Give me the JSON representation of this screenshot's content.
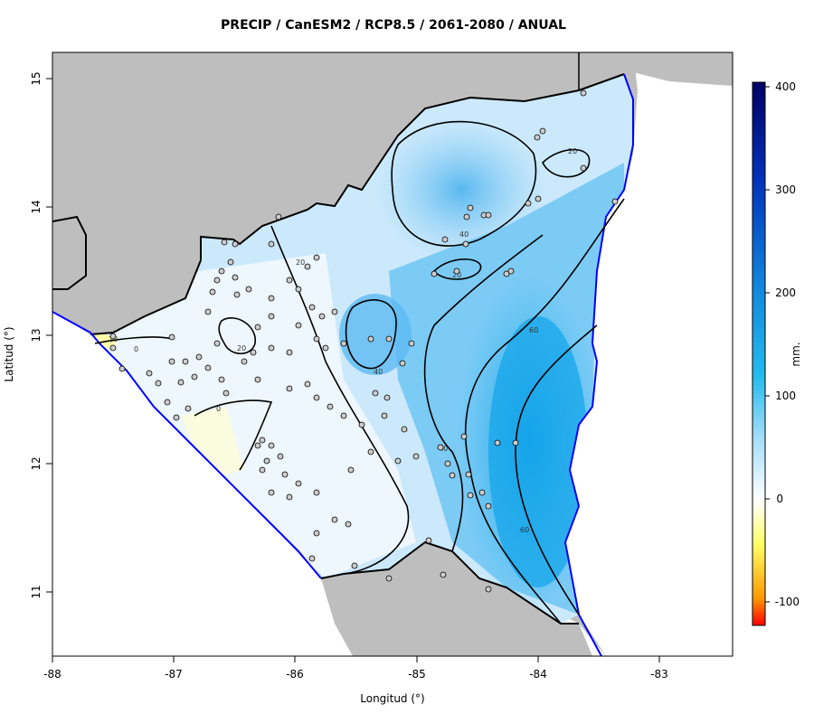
{
  "title": "PRECIP / CanESM2 / RCP8.5 / 2061-2080 / ANUAL",
  "xlabel": "Longitud (°)",
  "ylabel": "Latitud (°)",
  "colorbar": {
    "unit": "mm.",
    "ticks": [
      "400",
      "300",
      "200",
      "100",
      "0",
      "-100"
    ],
    "range": [
      -120,
      400
    ],
    "colors": [
      "#ff0000",
      "#ff9900",
      "#ffff66",
      "#ffffff",
      "#9fdcf8",
      "#33bbee",
      "#1188dd",
      "#0033bb",
      "#000066"
    ]
  },
  "axes": {
    "x_ticks": [
      "-88",
      "-87",
      "-86",
      "-85",
      "-84",
      "-83"
    ],
    "y_ticks": [
      "15",
      "14",
      "13",
      "12",
      "11"
    ],
    "xlim": [
      -88,
      -82.4
    ],
    "ylim": [
      10.5,
      15.2
    ]
  },
  "contour_labels": [
    "20",
    "40",
    "20",
    "20",
    "40",
    "60",
    "60",
    "40",
    "20",
    "20",
    "0",
    "0"
  ],
  "colors": {
    "land_outside": "#bebebe",
    "water": "#ffffff",
    "coast_line": "#0000ff",
    "border_line": "#000000"
  }
}
